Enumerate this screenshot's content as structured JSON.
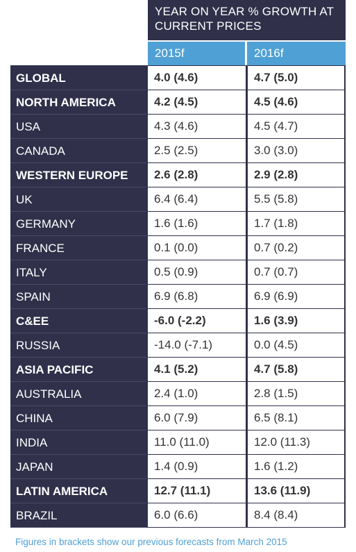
{
  "chart_data": {
    "type": "table",
    "header_title": "YEAR ON YEAR % GROWTH AT CURRENT PRICES",
    "columns": [
      "2015f",
      "2016f"
    ],
    "rows": [
      {
        "label": "GLOBAL",
        "v2015": "4.0 (4.6)",
        "v2016": "4.7 (5.0)",
        "bold": true
      },
      {
        "label": "NORTH AMERICA",
        "v2015": "4.2 (4.5)",
        "v2016": "4.5 (4.6)",
        "bold": true
      },
      {
        "label": "USA",
        "v2015": "4.3 (4.6)",
        "v2016": "4.5 (4.7)",
        "bold": false
      },
      {
        "label": "CANADA",
        "v2015": "2.5 (2.5)",
        "v2016": "3.0 (3.0)",
        "bold": false
      },
      {
        "label": "WESTERN EUROPE",
        "v2015": "2.6 (2.8)",
        "v2016": "2.9 (2.8)",
        "bold": true
      },
      {
        "label": "UK",
        "v2015": "6.4 (6.4)",
        "v2016": "5.5 (5.8)",
        "bold": false
      },
      {
        "label": "GERMANY",
        "v2015": "1.6 (1.6)",
        "v2016": "1.7 (1.8)",
        "bold": false
      },
      {
        "label": "FRANCE",
        "v2015": "0.1 (0.0)",
        "v2016": "0.7 (0.2)",
        "bold": false
      },
      {
        "label": "ITALY",
        "v2015": "0.5 (0.9)",
        "v2016": "0.7 (0.7)",
        "bold": false
      },
      {
        "label": "SPAIN",
        "v2015": "6.9 (6.8)",
        "v2016": "6.9 (6.9)",
        "bold": false
      },
      {
        "label": "C&EE",
        "v2015": "-6.0 (-2.2)",
        "v2016": "1.6 (3.9)",
        "bold": true
      },
      {
        "label": "RUSSIA",
        "v2015": "-14.0 (-7.1)",
        "v2016": "0.0 (4.5)",
        "bold": false
      },
      {
        "label": "ASIA PACIFIC",
        "v2015": "4.1 (5.2)",
        "v2016": "4.7 (5.8)",
        "bold": true
      },
      {
        "label": "AUSTRALIA",
        "v2015": "2.4 (1.0)",
        "v2016": "2.8 (1.5)",
        "bold": false
      },
      {
        "label": "CHINA",
        "v2015": "6.0 (7.9)",
        "v2016": "6.5 (8.1)",
        "bold": false
      },
      {
        "label": "INDIA",
        "v2015": "11.0 (11.0)",
        "v2016": "12.0 (11.3)",
        "bold": false
      },
      {
        "label": "JAPAN",
        "v2015": "1.4 (0.9)",
        "v2016": "1.6 (1.2)",
        "bold": false
      },
      {
        "label": "LATIN AMERICA",
        "v2015": "12.7 (11.1)",
        "v2016": "13.6 (11.9)",
        "bold": true
      },
      {
        "label": "BRAZIL",
        "v2015": "6.0 (6.6)",
        "v2016": "8.4 (8.4)",
        "bold": false
      }
    ],
    "footnote": "Figures in brackets show our previous forecasts from March 2015"
  },
  "colors": {
    "dark_navy": "#30304a",
    "header_blue": "#4fa0d4",
    "cell_text": "#333333"
  }
}
